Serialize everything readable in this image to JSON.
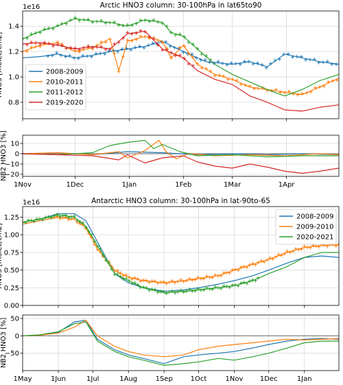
{
  "colors": {
    "blue": "#1f77b4",
    "orange": "#ff7f0e",
    "green": "#2ca02c",
    "red": "#d62728",
    "grid": "#d9d9d9"
  },
  "chart_data": [
    {
      "type": "line",
      "title": "Arctic HNO3 column: 30-100hPa in lat65to90",
      "ylabel": "HNO3 [molec/cm2]",
      "offset_text": "1e16",
      "ylim": [
        0.67,
        1.52
      ],
      "yticks": [
        0.8,
        1.0,
        1.2,
        1.4
      ],
      "yticklabels": [
        "0.8",
        "1.0",
        "1.2",
        "1.4"
      ],
      "xlim": [
        0,
        181
      ],
      "xticks": [
        0,
        30,
        61,
        92,
        120,
        151
      ],
      "xticklabels": [
        "1Nov",
        "1Dec",
        "1Jan",
        "1Feb",
        "1Mar",
        "1Apr"
      ],
      "grid": true,
      "legend": "left",
      "series": [
        {
          "name": "2008-2009",
          "color": "blue",
          "x": [
            0,
            10,
            20,
            30,
            40,
            50,
            60,
            70,
            80,
            92,
            105,
            120,
            130,
            140,
            150,
            160,
            170,
            181
          ],
          "y": [
            1.15,
            1.16,
            1.18,
            1.15,
            1.17,
            1.2,
            1.22,
            1.24,
            1.28,
            1.2,
            1.12,
            1.1,
            1.12,
            1.08,
            1.18,
            1.15,
            1.12,
            1.1
          ],
          "markers": [
            0.08,
            1.24
          ]
        },
        {
          "name": "2010-2011",
          "color": "orange",
          "x": [
            0,
            10,
            20,
            30,
            40,
            50,
            55,
            60,
            70,
            80,
            85,
            92,
            100,
            110,
            120,
            130,
            140,
            150,
            160,
            170,
            181
          ],
          "y": [
            1.2,
            1.25,
            1.27,
            1.2,
            1.23,
            1.3,
            1.05,
            1.28,
            1.32,
            1.28,
            1.15,
            1.25,
            1.1,
            1.02,
            0.98,
            0.92,
            0.9,
            0.88,
            0.86,
            0.92,
            0.99
          ],
          "markers": [
            0.0,
            1.0
          ]
        },
        {
          "name": "2011-2012",
          "color": "green",
          "x": [
            0,
            10,
            20,
            30,
            40,
            50,
            60,
            70,
            80,
            85,
            92,
            100,
            110,
            120,
            130,
            140,
            150,
            160,
            170,
            181
          ],
          "y": [
            1.3,
            1.36,
            1.4,
            1.46,
            1.44,
            1.43,
            1.4,
            1.45,
            1.43,
            1.35,
            1.32,
            1.22,
            1.1,
            1.02,
            0.96,
            0.9,
            0.85,
            0.9,
            0.97,
            1.02
          ],
          "markers": [
            0.0,
            0.6
          ]
        },
        {
          "name": "2019-2020",
          "color": "red",
          "x": [
            0,
            10,
            20,
            30,
            40,
            50,
            60,
            70,
            80,
            92,
            100,
            110,
            120,
            130,
            140,
            150,
            160,
            170,
            181
          ],
          "y": [
            1.26,
            1.27,
            1.25,
            1.22,
            1.24,
            1.22,
            1.34,
            1.36,
            1.22,
            1.15,
            1.05,
            0.98,
            0.94,
            0.85,
            0.8,
            0.74,
            0.73,
            0.76,
            0.78
          ],
          "markers": [
            0.0,
            0.55
          ]
        }
      ]
    },
    {
      "type": "line",
      "ylabel": "NB2 HNO3 [%]",
      "ylim": [
        -22,
        18
      ],
      "yticks": [
        -20,
        -10,
        0,
        10
      ],
      "yticklabels": [
        "−20",
        "−10",
        "0",
        "10"
      ],
      "xlim": [
        0,
        181
      ],
      "xticks": [
        0,
        30,
        61,
        92,
        120,
        151
      ],
      "xticklabels": [
        "1Nov",
        "1Dec",
        "1Jan",
        "1Feb",
        "1Mar",
        "1Apr"
      ],
      "grid": true,
      "zero_line": true,
      "series": [
        {
          "name": "2008-2009",
          "color": "blue",
          "x": [
            0,
            20,
            40,
            60,
            80,
            100,
            120,
            140,
            160,
            181
          ],
          "y": [
            0,
            1,
            -1,
            2,
            1,
            -1,
            0,
            -1,
            0,
            -1
          ]
        },
        {
          "name": "2010-2011",
          "color": "orange",
          "x": [
            0,
            20,
            40,
            55,
            60,
            70,
            78,
            82,
            88,
            95,
            110,
            130,
            150,
            170,
            181
          ],
          "y": [
            0,
            1,
            -1,
            2,
            -4,
            3,
            13,
            2,
            -5,
            0,
            -2,
            -1,
            -2,
            0,
            -1
          ]
        },
        {
          "name": "2011-2012",
          "color": "green",
          "x": [
            0,
            20,
            40,
            50,
            60,
            70,
            75,
            80,
            90,
            100,
            120,
            140,
            160,
            181
          ],
          "y": [
            0,
            -1,
            1,
            8,
            11,
            13,
            5,
            9,
            2,
            -2,
            -1,
            -3,
            -2,
            -2
          ]
        },
        {
          "name": "2019-2020",
          "color": "red",
          "x": [
            0,
            20,
            40,
            55,
            60,
            70,
            80,
            92,
            100,
            110,
            120,
            130,
            140,
            150,
            160,
            170,
            181
          ],
          "y": [
            0,
            -1,
            -2,
            -6,
            -1,
            -9,
            -4,
            -2,
            -8,
            -12,
            -14,
            -10,
            -13,
            -17,
            -19,
            -17,
            -14
          ]
        }
      ]
    },
    {
      "type": "line",
      "title": "Antarctic HNO3 column: 30-100hPa in lat-90to-65",
      "ylabel": "HNO3 [molec/cm2]",
      "offset_text": "1e16",
      "ylim": [
        0.0,
        1.4
      ],
      "yticks": [
        0.0,
        0.25,
        0.5,
        0.75,
        1.0,
        1.25
      ],
      "yticklabels": [
        "0.00",
        "0.25",
        "0.50",
        "0.75",
        "1.00",
        "1.25"
      ],
      "xlim": [
        0,
        275
      ],
      "xticks": [
        0,
        31,
        61,
        92,
        123,
        153,
        184,
        214,
        245
      ],
      "xticklabels": [
        "1May",
        "1Jun",
        "1Jul",
        "1Aug",
        "1Sep",
        "1Oct",
        "1Nov",
        "1Dec",
        "1Jan"
      ],
      "grid": true,
      "legend": "top-right",
      "series": [
        {
          "name": "2008-2009",
          "color": "blue",
          "x": [
            0,
            15,
            31,
            45,
            55,
            65,
            80,
            92,
            105,
            123,
            140,
            153,
            170,
            184,
            200,
            214,
            230,
            245,
            260,
            275
          ],
          "y": [
            1.18,
            1.22,
            1.3,
            1.3,
            1.2,
            0.9,
            0.45,
            0.32,
            0.25,
            0.2,
            0.22,
            0.25,
            0.3,
            0.35,
            0.42,
            0.5,
            0.6,
            0.68,
            0.7,
            0.68
          ],
          "markers": [
            0.0,
            0.0
          ]
        },
        {
          "name": "2009-2010",
          "color": "orange",
          "x": [
            0,
            15,
            31,
            45,
            55,
            65,
            80,
            92,
            105,
            123,
            140,
            153,
            170,
            184,
            200,
            214,
            230,
            245,
            260,
            275
          ],
          "y": [
            1.15,
            1.2,
            1.25,
            1.22,
            1.1,
            0.8,
            0.5,
            0.4,
            0.35,
            0.32,
            0.35,
            0.38,
            0.42,
            0.5,
            0.58,
            0.65,
            0.75,
            0.82,
            0.85,
            0.86
          ],
          "markers": [
            0.1,
            1.0
          ]
        },
        {
          "name": "2020-2021",
          "color": "green",
          "x": [
            0,
            15,
            31,
            45,
            55,
            65,
            80,
            92,
            105,
            123,
            140,
            153,
            170,
            184,
            200,
            214,
            230,
            245,
            260,
            275
          ],
          "y": [
            1.18,
            1.22,
            1.28,
            1.25,
            1.12,
            0.85,
            0.45,
            0.35,
            0.25,
            0.18,
            0.2,
            0.22,
            0.25,
            0.28,
            0.35,
            0.45,
            0.55,
            0.68,
            0.75,
            0.75
          ],
          "markers": [
            0.0,
            0.75
          ]
        }
      ]
    },
    {
      "type": "line",
      "ylabel": "NB2 HNO3 [%]",
      "ylim": [
        -100,
        60
      ],
      "yticks": [
        -50,
        0,
        50
      ],
      "yticklabels": [
        "−50",
        "0",
        "50"
      ],
      "xlim": [
        0,
        275
      ],
      "xticks": [
        0,
        31,
        61,
        92,
        123,
        153,
        184,
        214,
        245
      ],
      "xticklabels": [
        "1May",
        "1Jun",
        "1Jul",
        "1Aug",
        "1Sep",
        "1Oct",
        "1Nov",
        "1Dec",
        "1Jan"
      ],
      "grid": true,
      "zero_line": true,
      "series": [
        {
          "name": "2008-2009",
          "color": "blue",
          "x": [
            0,
            15,
            31,
            45,
            55,
            65,
            80,
            92,
            105,
            123,
            140,
            153,
            170,
            184,
            200,
            214,
            230,
            245,
            260,
            275
          ],
          "y": [
            0,
            2,
            10,
            40,
            45,
            -10,
            -40,
            -55,
            -65,
            -80,
            -60,
            -55,
            -50,
            -45,
            -35,
            -25,
            -15,
            -10,
            -8,
            -10
          ]
        },
        {
          "name": "2009-2010",
          "color": "orange",
          "x": [
            0,
            15,
            31,
            45,
            55,
            65,
            80,
            92,
            105,
            123,
            140,
            153,
            170,
            184,
            200,
            214,
            230,
            245,
            260,
            275
          ],
          "y": [
            0,
            2,
            8,
            25,
            45,
            0,
            -30,
            -45,
            -55,
            -60,
            -55,
            -40,
            -30,
            -25,
            -20,
            -15,
            -10,
            -12,
            -10,
            -8
          ]
        },
        {
          "name": "2020-2021",
          "color": "green",
          "x": [
            0,
            15,
            31,
            45,
            55,
            65,
            80,
            92,
            105,
            123,
            140,
            153,
            170,
            184,
            200,
            214,
            230,
            245,
            260,
            275
          ],
          "y": [
            0,
            3,
            12,
            35,
            40,
            -15,
            -45,
            -60,
            -70,
            -85,
            -80,
            -75,
            -65,
            -70,
            -60,
            -50,
            -35,
            -20,
            -15,
            -15
          ]
        }
      ]
    }
  ]
}
